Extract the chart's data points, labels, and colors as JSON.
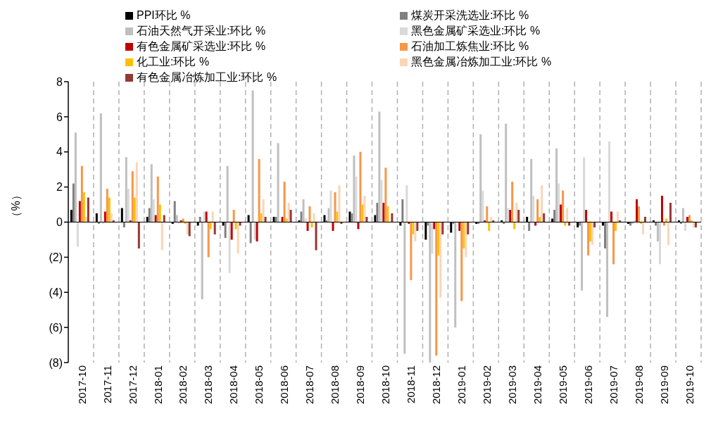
{
  "chart_data": {
    "type": "bar",
    "ylabel": "（%）",
    "categories": [
      "2017-10",
      "2017-11",
      "2017-12",
      "2018-01",
      "2018-02",
      "2018-03",
      "2018-04",
      "2018-05",
      "2018-06",
      "2018-07",
      "2018-08",
      "2018-09",
      "2018-10",
      "2018-11",
      "2018-12",
      "2019-01",
      "2019-02",
      "2019-03",
      "2019-04",
      "2019-05",
      "2019-06",
      "2019-07",
      "2019-08",
      "2019-09",
      "2019-10"
    ],
    "series": [
      {
        "name": "PPI环比 %",
        "color": "#000000",
        "values": [
          0.7,
          0.5,
          0.8,
          0.3,
          -0.1,
          -0.2,
          -0.2,
          0.4,
          0.3,
          0.1,
          0.4,
          0.6,
          0.4,
          -0.2,
          -1.0,
          -0.6,
          -0.1,
          0.1,
          0.3,
          0.2,
          -0.3,
          -0.2,
          -0.1,
          0.1,
          0.1
        ]
      },
      {
        "name": "煤炭开采洗选业:环比 %",
        "color": "#808080",
        "values": [
          2.2,
          -0.1,
          -0.3,
          0.8,
          1.2,
          0.3,
          -0.9,
          -1.2,
          0.3,
          0.6,
          0.1,
          0.5,
          1.1,
          1.3,
          -0.2,
          -0.1,
          -0.1,
          -0.1,
          -0.5,
          0.7,
          -0.2,
          -1.5,
          -0.2,
          -0.2,
          -0.1
        ]
      },
      {
        "name": "石油天然气开采业:环比 %",
        "color": "#bfbfbf",
        "values": [
          5.1,
          6.2,
          3.7,
          3.3,
          0.4,
          -4.4,
          3.2,
          7.5,
          4.5,
          1.3,
          0.8,
          3.8,
          6.3,
          -7.5,
          -8.0,
          -6.0,
          5.0,
          5.6,
          3.6,
          4.2,
          -3.9,
          -5.4,
          -0.1,
          -1.1,
          0.8
        ]
      },
      {
        "name": "黑色金属矿采选业:环比 %",
        "color": "#d9d9d9",
        "values": [
          -1.4,
          -0.1,
          1.9,
          1.3,
          -0.1,
          0.6,
          -2.9,
          -1.0,
          0.0,
          0.2,
          1.8,
          2.6,
          2.4,
          2.1,
          -1.8,
          0.0,
          1.8,
          0.8,
          1.5,
          2.2,
          3.7,
          4.6,
          0.1,
          -2.4,
          -0.5
        ]
      },
      {
        "name": "有色金属矿采选业:环比 %",
        "color": "#c00000",
        "values": [
          1.2,
          0.6,
          0.1,
          0.4,
          0.1,
          0.6,
          -1.0,
          -1.1,
          0.3,
          -0.5,
          -0.5,
          -0.4,
          1.1,
          -0.1,
          -0.4,
          -0.5,
          0.1,
          0.7,
          -0.2,
          1.0,
          0.7,
          0.6,
          1.3,
          1.5,
          0.3
        ]
      },
      {
        "name": "石油加工炼焦业:环比 %",
        "color": "#f79646",
        "values": [
          3.2,
          1.9,
          2.9,
          2.6,
          0.2,
          -2.0,
          0.7,
          3.6,
          2.3,
          0.9,
          1.7,
          4.0,
          3.1,
          -3.3,
          -7.6,
          -4.5,
          0.9,
          2.3,
          1.3,
          1.8,
          -1.9,
          -2.4,
          0.9,
          -0.2,
          0.4
        ]
      },
      {
        "name": "化工业:环比 %",
        "color": "#ffc000",
        "values": [
          1.7,
          1.4,
          1.4,
          1.0,
          -0.1,
          -0.4,
          -0.4,
          0.5,
          0.2,
          -0.3,
          0.6,
          1.0,
          0.9,
          -0.7,
          -1.9,
          -1.5,
          -0.5,
          -0.4,
          0.3,
          -0.2,
          -1.1,
          -0.5,
          -0.1,
          0.2,
          0.1
        ]
      },
      {
        "name": "黑色金属冶炼加工业:环比 %",
        "color": "#fcd5b5",
        "values": [
          0.3,
          0.5,
          3.4,
          -1.6,
          -0.7,
          0.6,
          -1.8,
          1.3,
          1.1,
          0.5,
          2.1,
          1.5,
          0.0,
          -1.1,
          -4.3,
          -2.0,
          0.3,
          1.1,
          2.1,
          0.8,
          -1.3,
          0.6,
          -0.7,
          -1.3,
          -0.3
        ]
      },
      {
        "name": "有色金属冶炼加工业:环比 %",
        "color": "#953735",
        "values": [
          1.4,
          0.1,
          -1.5,
          0.4,
          -0.8,
          -0.7,
          -0.2,
          0.3,
          0.7,
          -1.6,
          -0.1,
          0.3,
          0.5,
          -0.5,
          -0.7,
          -0.7,
          0.1,
          0.7,
          0.5,
          -0.2,
          -0.3,
          0.1,
          0.3,
          1.1,
          -0.3
        ]
      }
    ],
    "ylim": [
      -8,
      8
    ],
    "yticks": [
      8,
      6,
      4,
      2,
      0,
      {
        "value": -2,
        "label": "(2)"
      },
      {
        "value": -4,
        "label": "(4)"
      },
      {
        "value": -6,
        "label": "(6)"
      },
      {
        "value": -8,
        "label": "(8)"
      }
    ],
    "grid": "x",
    "legend": "top"
  }
}
